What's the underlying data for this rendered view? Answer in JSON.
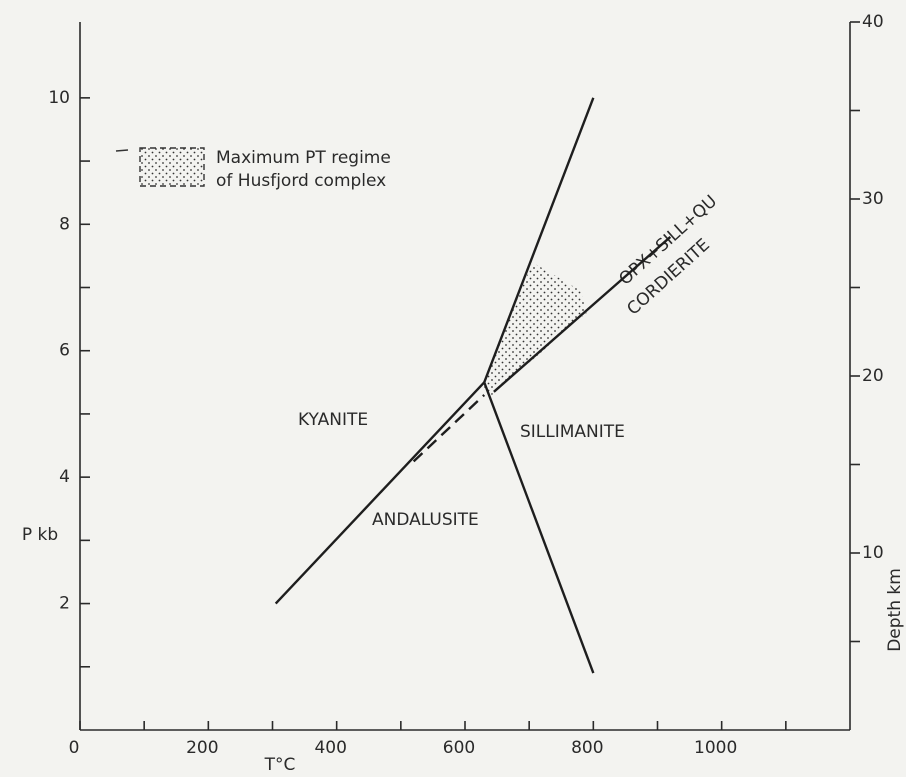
{
  "chart_data": {
    "type": "line",
    "xlabel": "T°C",
    "ylabel": "P kb",
    "y2label": "Depth km",
    "xlim": [
      0,
      1200
    ],
    "xticks": [
      0,
      200,
      400,
      600,
      800,
      1000
    ],
    "xminorticks": [
      100,
      300,
      500,
      700,
      900,
      1100
    ],
    "ylim": [
      0,
      11.2
    ],
    "yticks": [
      2,
      4,
      6,
      8,
      10
    ],
    "yminorticks": [
      1,
      3,
      5,
      7,
      9
    ],
    "y2lim": [
      0,
      40
    ],
    "y2ticks": [
      10,
      20,
      30,
      40
    ],
    "y2minorticks": [
      5,
      15,
      25,
      35
    ],
    "color": "#1e1e1e",
    "series": [
      {
        "x": [
          630,
          800
        ],
        "values": [
          5.5,
          10
        ],
        "style": "solid"
      },
      {
        "x": [
          305,
          630
        ],
        "values": [
          2,
          5.5
        ],
        "style": "solid"
      },
      {
        "x": [
          630,
          800
        ],
        "values": [
          5.5,
          0.9
        ],
        "style": "solid"
      },
      {
        "x": [
          645,
          920
        ],
        "values": [
          5.35,
          7.8
        ],
        "style": "solid"
      },
      {
        "x": [
          520,
          630
        ],
        "values": [
          4.25,
          5.3
        ],
        "style": "dashed"
      }
    ],
    "region": {
      "x": [
        625,
        705,
        780,
        790,
        642
      ],
      "values": [
        5.4,
        7.4,
        6.95,
        6.6,
        5.3
      ]
    },
    "legend": [
      "Maximum PT regime",
      "of Husfjord complex"
    ],
    "annotations": [
      "KYANITE",
      "SILLIMANITE",
      "ANDALUSITE",
      "OPX+SILL+QU",
      "CORDIERITE"
    ]
  }
}
